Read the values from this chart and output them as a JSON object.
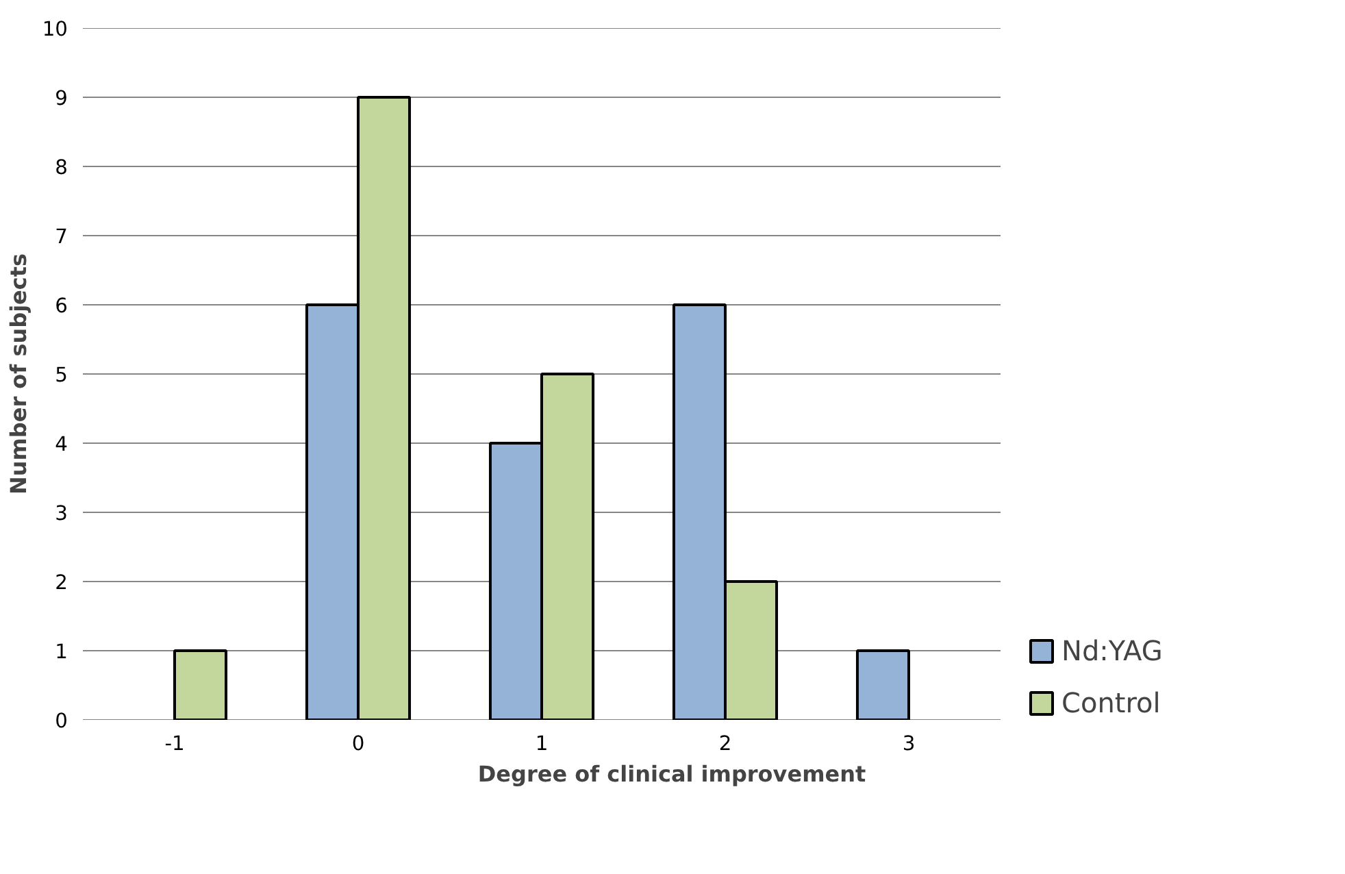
{
  "chart_data": {
    "type": "bar",
    "xlabel": "Degree of clinical improvement",
    "ylabel": "Number of subjects",
    "categories": [
      "-1",
      "0",
      "1",
      "2",
      "3"
    ],
    "series": [
      {
        "name": "Nd:YAG",
        "color": "#95b3d7",
        "values": [
          null,
          6,
          4,
          6,
          1
        ]
      },
      {
        "name": "Control",
        "color": "#c3d69b",
        "values": [
          1,
          9,
          5,
          2,
          null
        ]
      }
    ],
    "ylim": [
      0,
      10
    ],
    "yticks": [
      0,
      1,
      2,
      3,
      4,
      5,
      6,
      7,
      8,
      9,
      10
    ],
    "grid": "y",
    "legend": "right"
  }
}
